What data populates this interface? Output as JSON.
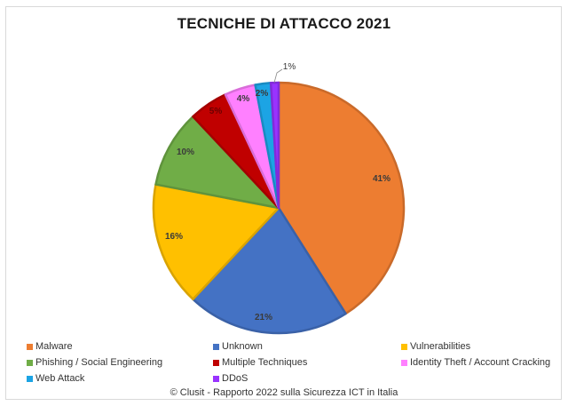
{
  "chart_data": {
    "type": "pie",
    "title": "TECNICHE DI ATTACCO 2021",
    "categories": [
      "Malware",
      "Unknown",
      "Vulnerabilities",
      "Phishing / Social Engineering",
      "Multiple Techniques",
      "Identity Theft / Account Cracking",
      "Web Attack",
      "DDoS"
    ],
    "values": [
      41,
      21,
      16,
      10,
      5,
      4,
      2,
      1
    ],
    "labels": [
      "41%",
      "21%",
      "16%",
      "10%",
      "5%",
      "4%",
      "2%",
      "1%"
    ],
    "colors": [
      "#ed7d31",
      "#4472c4",
      "#ffc000",
      "#70ad47",
      "#c00000",
      "#ff80ff",
      "#1ca4e4",
      "#9933ff"
    ],
    "start_angle": "12 o'clock",
    "direction": "clockwise",
    "legend_position": "bottom",
    "source": "© Clusit - Rapporto 2022 sulla Sicurezza ICT in Italia"
  },
  "title": "TECNICHE DI ATTACCO 2021",
  "legend": [
    {
      "label": "Malware",
      "color": "#ed7d31"
    },
    {
      "label": "Unknown",
      "color": "#4472c4"
    },
    {
      "label": "Vulnerabilities",
      "color": "#ffc000"
    },
    {
      "label": "Phishing / Social Engineering",
      "color": "#70ad47"
    },
    {
      "label": "Multiple Techniques",
      "color": "#c00000"
    },
    {
      "label": "Identity Theft / Account Cracking",
      "color": "#ff80ff"
    },
    {
      "label": "Web Attack",
      "color": "#1ca4e4"
    },
    {
      "label": "DDoS",
      "color": "#9933ff"
    }
  ],
  "footer": "© Clusit - Rapporto 2022 sulla Sicurezza ICT in Italia"
}
